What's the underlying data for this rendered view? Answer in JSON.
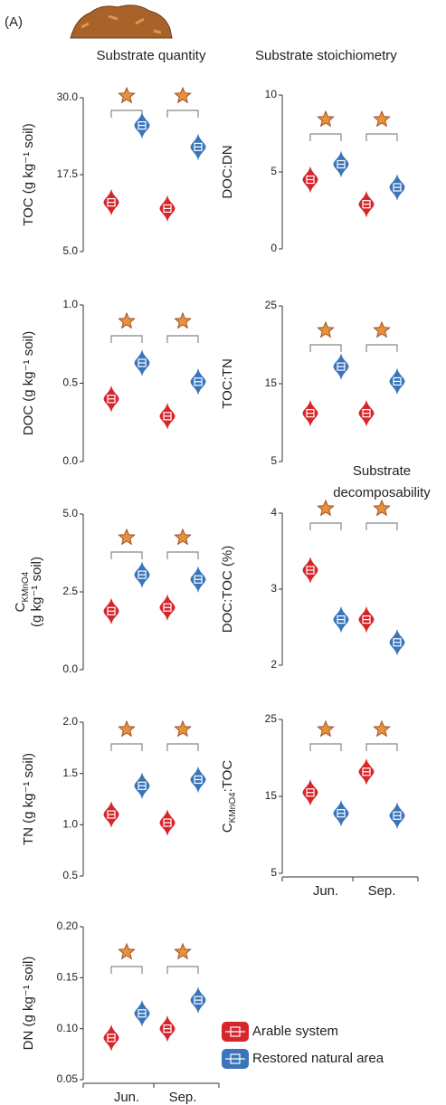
{
  "header": {
    "label": "(A)",
    "columns": [
      "Substrate quantity",
      "Substrate stoichiometry"
    ]
  },
  "chart_data": [
    {
      "type": "violin",
      "ylabel": [
        [
          "TOC (g kg⁻¹ soil)"
        ]
      ],
      "ylim": [
        5,
        30
      ],
      "yticks": [
        {
          "value": 5,
          "label": "5.0"
        },
        17.5,
        {
          "value": 30,
          "label": "30.0"
        }
      ],
      "series": [
        {
          "color": "#d7262b",
          "values": [
            13,
            12
          ]
        },
        {
          "color": "#3b75b9",
          "values": [
            25.5,
            22
          ]
        }
      ]
    },
    {
      "type": "violin",
      "ylabel": [
        [
          "DOC (g kg⁻¹ soil)"
        ]
      ],
      "ylim": [
        0,
        1
      ],
      "yticks": [
        {
          "value": 0,
          "label": "0.0"
        },
        0.5,
        {
          "value": 1,
          "label": "1.0"
        }
      ],
      "series": [
        {
          "color": "#d7262b",
          "values": [
            0.4,
            0.29
          ]
        },
        {
          "color": "#3b75b9",
          "values": [
            0.63,
            0.51
          ]
        }
      ]
    },
    {
      "type": "violin",
      "ylabel": [
        [
          "C",
          "KMnO4"
        ],
        [
          "(g kg⁻¹ soil)"
        ]
      ],
      "ylim": [
        0,
        5
      ],
      "yticks": [
        {
          "value": 0,
          "label": "0.0"
        },
        2.5,
        {
          "value": 5,
          "label": "5.0"
        }
      ],
      "series": [
        {
          "color": "#d7262b",
          "values": [
            1.88,
            2.0
          ]
        },
        {
          "color": "#3b75b9",
          "values": [
            3.05,
            2.9
          ]
        }
      ]
    },
    {
      "type": "violin",
      "ylabel": [
        [
          "TN (g kg⁻¹ soil)"
        ]
      ],
      "ylim": [
        0.5,
        2
      ],
      "yticks": [
        0.5,
        {
          "value": 1,
          "label": "1.0"
        },
        1.5,
        {
          "value": 2,
          "label": "2.0"
        }
      ],
      "series": [
        {
          "color": "#d7262b",
          "values": [
            1.1,
            1.02
          ]
        },
        {
          "color": "#3b75b9",
          "values": [
            1.38,
            1.44
          ]
        }
      ]
    },
    {
      "type": "violin",
      "ylabel": [
        [
          "DN (g kg⁻¹ soil)"
        ]
      ],
      "ylim": [
        0.05,
        0.2
      ],
      "yticks": [
        0.05,
        {
          "value": 0.1,
          "label": "0.10"
        },
        0.15,
        {
          "value": 0.2,
          "label": "0.20"
        }
      ],
      "categories": [
        "Jun.",
        "Sep."
      ],
      "series": [
        {
          "name": "Arable system",
          "color": "#d7262b",
          "values": [
            0.091,
            0.1
          ]
        },
        {
          "name": "Restored natural area",
          "color": "#3b75b9",
          "values": [
            0.115,
            0.128
          ]
        }
      ]
    },
    {
      "type": "violin",
      "ylabel": [
        [
          "DOC:DN"
        ]
      ],
      "ylim": [
        0,
        10
      ],
      "yticks": [
        0,
        5,
        10
      ],
      "series": [
        {
          "color": "#d7262b",
          "values": [
            4.5,
            2.9
          ]
        },
        {
          "color": "#3b75b9",
          "values": [
            5.5,
            4.0
          ]
        }
      ]
    },
    {
      "type": "violin",
      "ylabel": [
        [
          "TOC:TN"
        ]
      ],
      "ylim": [
        5,
        25
      ],
      "yticks": [
        5,
        15,
        25
      ],
      "series": [
        {
          "color": "#d7262b",
          "values": [
            11.2,
            11.2
          ]
        },
        {
          "color": "#3b75b9",
          "values": [
            17.2,
            15.3
          ]
        }
      ]
    },
    {
      "type": "violin",
      "title": [
        "Substrate",
        "decomposability"
      ],
      "ylabel": [
        [
          "DOC:TOC (%)"
        ]
      ],
      "ylim": [
        2,
        4
      ],
      "yticks": [
        2,
        3,
        4
      ],
      "series": [
        {
          "color": "#d7262b",
          "values": [
            3.25,
            2.6
          ]
        },
        {
          "color": "#3b75b9",
          "values": [
            2.6,
            2.3
          ]
        }
      ]
    },
    {
      "type": "violin",
      "ylabel": [
        [
          "C",
          "KMnO4",
          ":TOC"
        ]
      ],
      "ylim": [
        5,
        25
      ],
      "yticks": [
        5,
        15,
        25
      ],
      "categories": [
        "Jun.",
        "Sep."
      ],
      "series": [
        {
          "color": "#d7262b",
          "values": [
            15.5,
            18.2
          ]
        },
        {
          "color": "#3b75b9",
          "values": [
            12.8,
            12.5
          ]
        }
      ]
    }
  ]
}
